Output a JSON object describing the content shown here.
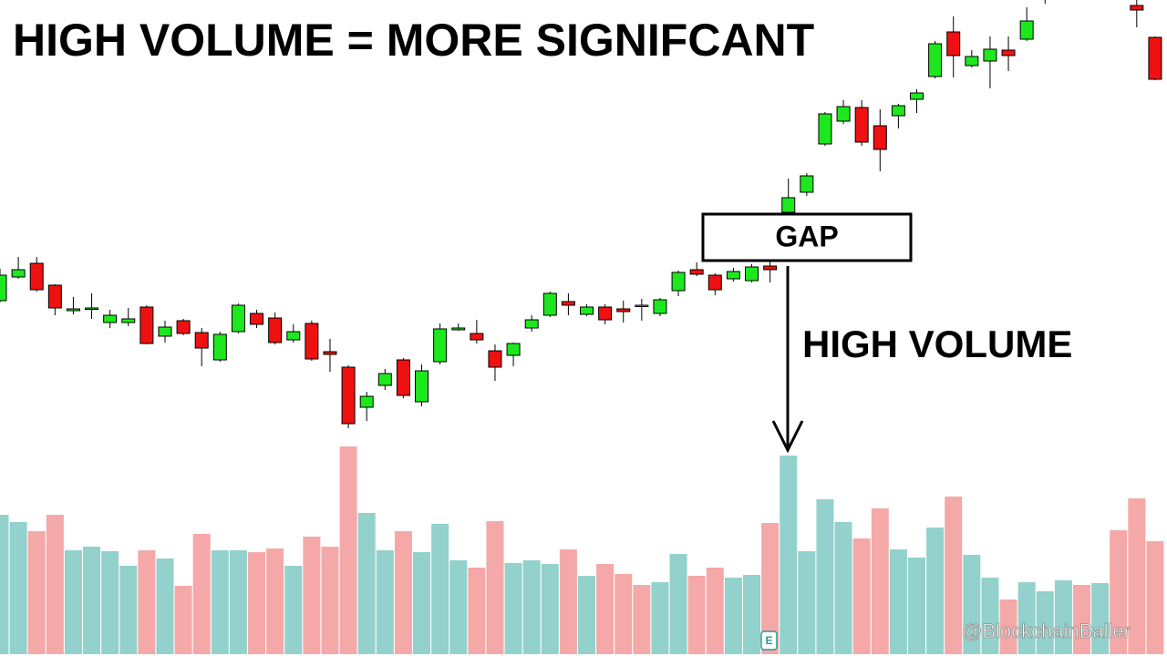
{
  "chart_data": {
    "type": "candlestick",
    "title": "HIGH VOLUME = MORE SIGNIFCANT",
    "annotations": {
      "gap": "GAP",
      "high_volume": "HIGH VOLUME"
    },
    "watermark": "@BlockchainBaller",
    "marker": "E",
    "up_color": "#1de81d",
    "down_color": "#ef1111",
    "ylim": [
      0,
      500
    ],
    "ohlc": [
      [
        170,
        205,
        168,
        198
      ],
      [
        196,
        218,
        194,
        204
      ],
      [
        211,
        218,
        180,
        182
      ],
      [
        187,
        188,
        154,
        162
      ],
      [
        159,
        174,
        155,
        161
      ],
      [
        162,
        178,
        150,
        162
      ],
      [
        146,
        160,
        140,
        154
      ],
      [
        146,
        162,
        142,
        150
      ],
      [
        163,
        165,
        122,
        123
      ],
      [
        131,
        148,
        124,
        141
      ],
      [
        148,
        150,
        132,
        134
      ],
      [
        135,
        140,
        98,
        118
      ],
      [
        105,
        136,
        103,
        133
      ],
      [
        136,
        167,
        134,
        165
      ],
      [
        156,
        160,
        140,
        144
      ],
      [
        151,
        157,
        122,
        124
      ],
      [
        127,
        144,
        124,
        136
      ],
      [
        145,
        148,
        104,
        106
      ],
      [
        114,
        128,
        92,
        111
      ],
      [
        97,
        99,
        30,
        35
      ],
      [
        53,
        70,
        38,
        65
      ],
      [
        77,
        95,
        72,
        90
      ],
      [
        105,
        107,
        63,
        66
      ],
      [
        59,
        100,
        54,
        93
      ],
      [
        103,
        145,
        100,
        139
      ],
      [
        138,
        145,
        137,
        140
      ],
      [
        134,
        149,
        123,
        127
      ],
      [
        115,
        122,
        82,
        97
      ],
      [
        110,
        124,
        98,
        123
      ],
      [
        140,
        154,
        136,
        149
      ],
      [
        154,
        180,
        152,
        178
      ],
      [
        169,
        178,
        154,
        165
      ],
      [
        155,
        166,
        153,
        163
      ],
      [
        163,
        166,
        144,
        149
      ],
      [
        161,
        170,
        146,
        158
      ],
      [
        164,
        172,
        148,
        165
      ],
      [
        156,
        173,
        153,
        171
      ],
      [
        181,
        203,
        175,
        201
      ],
      [
        204,
        212,
        197,
        199
      ],
      [
        198,
        200,
        176,
        182
      ],
      [
        194,
        206,
        191,
        202
      ],
      [
        192,
        210,
        190,
        207
      ],
      [
        208,
        217,
        190,
        204
      ],
      [
        267,
        304,
        265,
        283
      ],
      [
        289,
        310,
        285,
        307
      ],
      [
        342,
        377,
        340,
        375
      ],
      [
        367,
        390,
        364,
        383
      ],
      [
        382,
        390,
        340,
        344
      ],
      [
        362,
        380,
        312,
        336
      ],
      [
        373,
        386,
        359,
        384
      ],
      [
        391,
        402,
        376,
        398
      ],
      [
        416,
        455,
        414,
        452
      ],
      [
        465,
        482,
        415,
        439
      ],
      [
        428,
        445,
        426,
        438
      ],
      [
        433,
        460,
        403,
        446
      ],
      [
        445,
        460,
        422,
        439
      ],
      [
        457,
        492,
        455,
        477
      ],
      [
        510,
        530,
        496,
        525
      ],
      null,
      null,
      null,
      null,
      [
        494,
        500,
        470,
        489
      ],
      [
        459,
        460,
        412,
        413
      ]
    ],
    "volume": {
      "ylim": [
        0,
        240
      ],
      "values": [
        153,
        145,
        135,
        153,
        114,
        118,
        113,
        97,
        114,
        105,
        75,
        132,
        114,
        114,
        112,
        116,
        97,
        129,
        118,
        228,
        155,
        114,
        135,
        112,
        143,
        103,
        95,
        146,
        100,
        103,
        99,
        115,
        86,
        99,
        88,
        76,
        79,
        110,
        86,
        95,
        84,
        87,
        144,
        218,
        113,
        170,
        145,
        127,
        160,
        115,
        106,
        139,
        173,
        109,
        84,
        60,
        79,
        69,
        81,
        76,
        78,
        136,
        171,
        124
      ],
      "colors": [
        "#92d1cc",
        "#92d1cc",
        "#f5a8a8",
        "#f5a8a8",
        "#92d1cc",
        "#92d1cc",
        "#92d1cc",
        "#92d1cc",
        "#f5a8a8",
        "#92d1cc",
        "#f5a8a8",
        "#f5a8a8",
        "#92d1cc",
        "#92d1cc",
        "#f5a8a8",
        "#f5a8a8",
        "#92d1cc",
        "#f5a8a8",
        "#f5a8a8",
        "#f5a8a8",
        "#92d1cc",
        "#92d1cc",
        "#f5a8a8",
        "#92d1cc",
        "#92d1cc",
        "#92d1cc",
        "#f5a8a8",
        "#f5a8a8",
        "#92d1cc",
        "#92d1cc",
        "#92d1cc",
        "#f5a8a8",
        "#92d1cc",
        "#f5a8a8",
        "#f5a8a8",
        "#f5a8a8",
        "#92d1cc",
        "#92d1cc",
        "#f5a8a8",
        "#f5a8a8",
        "#92d1cc",
        "#92d1cc",
        "#f5a8a8",
        "#92d1cc",
        "#92d1cc",
        "#92d1cc",
        "#92d1cc",
        "#f5a8a8",
        "#f5a8a8",
        "#92d1cc",
        "#92d1cc",
        "#92d1cc",
        "#f5a8a8",
        "#92d1cc",
        "#92d1cc",
        "#f5a8a8",
        "#92d1cc",
        "#92d1cc",
        "#92d1cc",
        "#f5a8a8",
        "#92d1cc",
        "#f5a8a8",
        "#f5a8a8",
        "#f5a8a8"
      ]
    }
  }
}
